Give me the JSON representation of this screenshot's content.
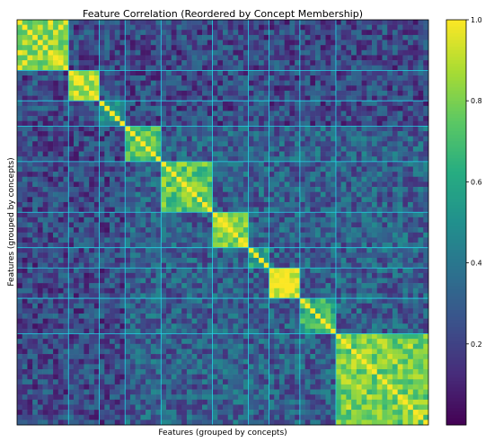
{
  "chart_data": {
    "type": "heatmap",
    "title": "Feature Correlation (Reordered by Concept Membership)",
    "xlabel": "Features (grouped by concepts)",
    "ylabel": "Features (grouped by concepts)",
    "n_features": 80,
    "group_sizes": [
      10,
      6,
      5,
      7,
      10,
      7,
      4,
      6,
      7,
      18
    ],
    "within_group_corr": [
      0.85,
      0.9,
      0.55,
      0.7,
      0.75,
      0.8,
      0.6,
      0.95,
      0.65,
      0.8
    ],
    "background_corr": 0.15,
    "colormap": "viridis",
    "colorbar": {
      "min": 0.0,
      "max": 1.0,
      "ticks": [
        0.2,
        0.4,
        0.6,
        0.8,
        1.0
      ],
      "tick_labels": [
        "0.2",
        "0.4",
        "0.6",
        "0.8",
        "1.0"
      ]
    },
    "group_boundary_color": "#22d4e6",
    "grid": false,
    "x_tick_labels": false,
    "y_tick_labels": false
  }
}
